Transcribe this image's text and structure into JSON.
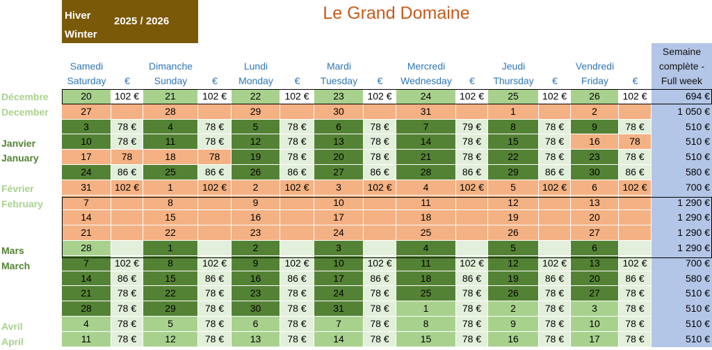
{
  "header": {
    "season_fr": "Hiver",
    "season_en": "Winter",
    "years": "2025 / 2026",
    "title": "Le Grand Domaine"
  },
  "columns": [
    {
      "fr": "Samedi",
      "en": "Saturday"
    },
    {
      "fr": "",
      "en": "€"
    },
    {
      "fr": "Dimanche",
      "en": "Sunday"
    },
    {
      "fr": "",
      "en": "€"
    },
    {
      "fr": "Lundi",
      "en": "Monday"
    },
    {
      "fr": "",
      "en": "€"
    },
    {
      "fr": "Mardi",
      "en": "Tuesday"
    },
    {
      "fr": "",
      "en": "€"
    },
    {
      "fr": "Mercredi",
      "en": "Wednesday"
    },
    {
      "fr": "",
      "en": "€"
    },
    {
      "fr": "Jeudi",
      "en": "Thursday"
    },
    {
      "fr": "",
      "en": "€"
    },
    {
      "fr": "Vendredi",
      "en": "Friday"
    },
    {
      "fr": "",
      "en": "€"
    }
  ],
  "week_header": [
    "Semaine",
    "complète -",
    "Full week"
  ],
  "month_labels": [
    {
      "text": "Décembre",
      "tone": "light"
    },
    {
      "text": "December",
      "tone": "light"
    },
    {
      "text": "Janvier",
      "tone": "dark"
    },
    {
      "text": "January",
      "tone": "dark"
    },
    {
      "text": "Février",
      "tone": "light"
    },
    {
      "text": "February",
      "tone": "light"
    },
    {
      "text": "Mars",
      "tone": "dark"
    },
    {
      "text": "March",
      "tone": "dark"
    },
    {
      "text": "Avril",
      "tone": "light"
    },
    {
      "text": "April",
      "tone": "light"
    }
  ],
  "colors": {
    "dark_green": "#548235",
    "light_green": "#a9d18e",
    "pale_green": "#e2efda",
    "salmon": "#f4b183",
    "week_blue": "#b4c6e7",
    "header_brown": "#7a5908",
    "title_orange": "#c55a1b"
  },
  "rows": [
    {
      "days": [
        [
          "20",
          "102 €"
        ],
        [
          "21",
          "102 €"
        ],
        [
          "22",
          "102 €"
        ],
        [
          "23",
          "102 €"
        ],
        [
          "24",
          "102 €"
        ],
        [
          "25",
          "102 €"
        ],
        [
          "26",
          "102 €"
        ]
      ],
      "week": "694 €",
      "day_tones": [
        "L",
        "L",
        "L",
        "L",
        "L",
        "L",
        "L"
      ],
      "price_tones": [
        "W",
        "W",
        "W",
        "W",
        "W",
        "W",
        "W"
      ]
    },
    {
      "days": [
        [
          "27",
          ""
        ],
        [
          "28",
          ""
        ],
        [
          "29",
          ""
        ],
        [
          "30",
          ""
        ],
        [
          "31",
          ""
        ],
        [
          "1",
          ""
        ],
        [
          "2",
          ""
        ]
      ],
      "week": "1 050 €",
      "day_tones": [
        "S",
        "S",
        "S",
        "S",
        "S",
        "S",
        "S"
      ],
      "price_tones": [
        "S",
        "S",
        "S",
        "S",
        "S",
        "S",
        "S"
      ]
    },
    {
      "days": [
        [
          "3",
          "78 €"
        ],
        [
          "4",
          "78 €"
        ],
        [
          "5",
          "78 €"
        ],
        [
          "6",
          "78 €"
        ],
        [
          "7",
          "79 €"
        ],
        [
          "8",
          "78 €"
        ],
        [
          "9",
          "78 €"
        ]
      ],
      "week": "510 €",
      "day_tones": [
        "D",
        "D",
        "D",
        "D",
        "D",
        "D",
        "D"
      ],
      "price_tones": [
        "P",
        "P",
        "P",
        "P",
        "P",
        "P",
        "P"
      ]
    },
    {
      "days": [
        [
          "10",
          "78 €"
        ],
        [
          "11",
          "78 €"
        ],
        [
          "12",
          "78 €"
        ],
        [
          "13",
          "78 €"
        ],
        [
          "14",
          "78 €"
        ],
        [
          "15",
          "78 €"
        ],
        [
          "16",
          "78"
        ]
      ],
      "week": "510 €",
      "day_tones": [
        "D",
        "D",
        "D",
        "D",
        "D",
        "D",
        "S"
      ],
      "price_tones": [
        "P",
        "P",
        "P",
        "P",
        "P",
        "P",
        "S"
      ]
    },
    {
      "days": [
        [
          "17",
          "78"
        ],
        [
          "18",
          "78"
        ],
        [
          "19",
          "78 €"
        ],
        [
          "20",
          "78 €"
        ],
        [
          "21",
          "78 €"
        ],
        [
          "22",
          "78 €"
        ],
        [
          "23",
          "78 €"
        ]
      ],
      "week": "510 €",
      "day_tones": [
        "S",
        "S",
        "D",
        "D",
        "D",
        "D",
        "D"
      ],
      "price_tones": [
        "S",
        "S",
        "P",
        "P",
        "P",
        "P",
        "P"
      ]
    },
    {
      "days": [
        [
          "24",
          "86 €"
        ],
        [
          "25",
          "86 €"
        ],
        [
          "26",
          "86 €"
        ],
        [
          "27",
          "86 €"
        ],
        [
          "28",
          "86 €"
        ],
        [
          "29",
          "86 €"
        ],
        [
          "30",
          "86 €"
        ]
      ],
      "week": "580 €",
      "day_tones": [
        "D",
        "D",
        "D",
        "D",
        "D",
        "D",
        "D"
      ],
      "price_tones": [
        "P",
        "P",
        "P",
        "P",
        "P",
        "P",
        "P"
      ]
    },
    {
      "days": [
        [
          "31",
          "102 €"
        ],
        [
          "1",
          "102 €"
        ],
        [
          "2",
          "102 €"
        ],
        [
          "3",
          "102 €"
        ],
        [
          "4",
          "102 €"
        ],
        [
          "5",
          "102 €"
        ],
        [
          "6",
          "102 €"
        ]
      ],
      "week": "700 €",
      "day_tones": [
        "S",
        "S",
        "S",
        "S",
        "S",
        "S",
        "S"
      ],
      "price_tones": [
        "S",
        "S",
        "S",
        "S",
        "S",
        "S",
        "S"
      ]
    },
    {
      "days": [
        [
          "7",
          ""
        ],
        [
          "8",
          ""
        ],
        [
          "9",
          ""
        ],
        [
          "10",
          ""
        ],
        [
          "11",
          ""
        ],
        [
          "12",
          ""
        ],
        [
          "13",
          ""
        ]
      ],
      "week": "1 290 €",
      "day_tones": [
        "S",
        "S",
        "S",
        "S",
        "S",
        "S",
        "S"
      ],
      "price_tones": [
        "S",
        "S",
        "S",
        "S",
        "S",
        "S",
        "S"
      ]
    },
    {
      "days": [
        [
          "14",
          ""
        ],
        [
          "15",
          ""
        ],
        [
          "16",
          ""
        ],
        [
          "17",
          ""
        ],
        [
          "18",
          ""
        ],
        [
          "19",
          ""
        ],
        [
          "20",
          ""
        ]
      ],
      "week": "1 290 €",
      "day_tones": [
        "S",
        "S",
        "S",
        "S",
        "S",
        "S",
        "S"
      ],
      "price_tones": [
        "S",
        "S",
        "S",
        "S",
        "S",
        "S",
        "S"
      ]
    },
    {
      "days": [
        [
          "21",
          ""
        ],
        [
          "22",
          ""
        ],
        [
          "23",
          ""
        ],
        [
          "24",
          ""
        ],
        [
          "25",
          ""
        ],
        [
          "26",
          ""
        ],
        [
          "27",
          ""
        ]
      ],
      "week": "1 290 €",
      "day_tones": [
        "S",
        "S",
        "S",
        "S",
        "S",
        "S",
        "S"
      ],
      "price_tones": [
        "S",
        "S",
        "S",
        "S",
        "S",
        "S",
        "S"
      ]
    },
    {
      "days": [
        [
          "28",
          ""
        ],
        [
          "1",
          ""
        ],
        [
          "2",
          ""
        ],
        [
          "3",
          ""
        ],
        [
          "4",
          ""
        ],
        [
          "5",
          ""
        ],
        [
          "6",
          ""
        ]
      ],
      "week": "1 290 €",
      "day_tones": [
        "L",
        "D",
        "D",
        "D",
        "D",
        "D",
        "D"
      ],
      "price_tones": [
        "P",
        "P",
        "P",
        "P",
        "P",
        "P",
        "P"
      ]
    },
    {
      "days": [
        [
          "7",
          "102 €"
        ],
        [
          "8",
          "102 €"
        ],
        [
          "9",
          "102 €"
        ],
        [
          "10",
          "102 €"
        ],
        [
          "11",
          "102 €"
        ],
        [
          "12",
          "102 €"
        ],
        [
          "13",
          "102 €"
        ]
      ],
      "week": "700 €",
      "day_tones": [
        "D",
        "D",
        "D",
        "D",
        "D",
        "D",
        "D"
      ],
      "price_tones": [
        "P",
        "P",
        "P",
        "P",
        "P",
        "P",
        "P"
      ]
    },
    {
      "days": [
        [
          "14",
          "86 €"
        ],
        [
          "15",
          "86 €"
        ],
        [
          "16",
          "86 €"
        ],
        [
          "17",
          "86 €"
        ],
        [
          "18",
          "86 €"
        ],
        [
          "19",
          "86 €"
        ],
        [
          "20",
          "86 €"
        ]
      ],
      "week": "580 €",
      "day_tones": [
        "D",
        "D",
        "D",
        "D",
        "D",
        "D",
        "D"
      ],
      "price_tones": [
        "P",
        "P",
        "P",
        "P",
        "P",
        "P",
        "P"
      ]
    },
    {
      "days": [
        [
          "21",
          "78 €"
        ],
        [
          "22",
          "78 €"
        ],
        [
          "23",
          "78 €"
        ],
        [
          "24",
          "78 €"
        ],
        [
          "25",
          "78 €"
        ],
        [
          "26",
          "78 €"
        ],
        [
          "27",
          "78 €"
        ]
      ],
      "week": "510 €",
      "day_tones": [
        "D",
        "D",
        "D",
        "D",
        "D",
        "D",
        "D"
      ],
      "price_tones": [
        "P",
        "P",
        "P",
        "P",
        "P",
        "P",
        "P"
      ]
    },
    {
      "days": [
        [
          "28",
          "78 €"
        ],
        [
          "29",
          "78 €"
        ],
        [
          "30",
          "78 €"
        ],
        [
          "31",
          "78 €"
        ],
        [
          "1",
          "78 €"
        ],
        [
          "2",
          "78 €"
        ],
        [
          "3",
          "78 €"
        ]
      ],
      "week": "510 €",
      "day_tones": [
        "D",
        "D",
        "D",
        "D",
        "L",
        "L",
        "L"
      ],
      "price_tones": [
        "P",
        "P",
        "P",
        "P",
        "P",
        "P",
        "P"
      ]
    },
    {
      "days": [
        [
          "4",
          "78 €"
        ],
        [
          "5",
          "78 €"
        ],
        [
          "6",
          "78 €"
        ],
        [
          "7",
          "78 €"
        ],
        [
          "8",
          "78 €"
        ],
        [
          "9",
          "78 €"
        ],
        [
          "10",
          "78 €"
        ]
      ],
      "week": "510 €",
      "day_tones": [
        "L",
        "L",
        "L",
        "L",
        "L",
        "L",
        "L"
      ],
      "price_tones": [
        "P",
        "P",
        "P",
        "P",
        "P",
        "P",
        "P"
      ]
    },
    {
      "days": [
        [
          "11",
          "78 €"
        ],
        [
          "12",
          "78 €"
        ],
        [
          "13",
          "78 €"
        ],
        [
          "14",
          "78 €"
        ],
        [
          "15",
          "78 €"
        ],
        [
          "16",
          "78 €"
        ],
        [
          "17",
          "78 €"
        ]
      ],
      "week": "510 €",
      "day_tones": [
        "L",
        "L",
        "L",
        "L",
        "L",
        "L",
        "L"
      ],
      "price_tones": [
        "P",
        "P",
        "P",
        "P",
        "P",
        "P",
        "P"
      ]
    }
  ]
}
